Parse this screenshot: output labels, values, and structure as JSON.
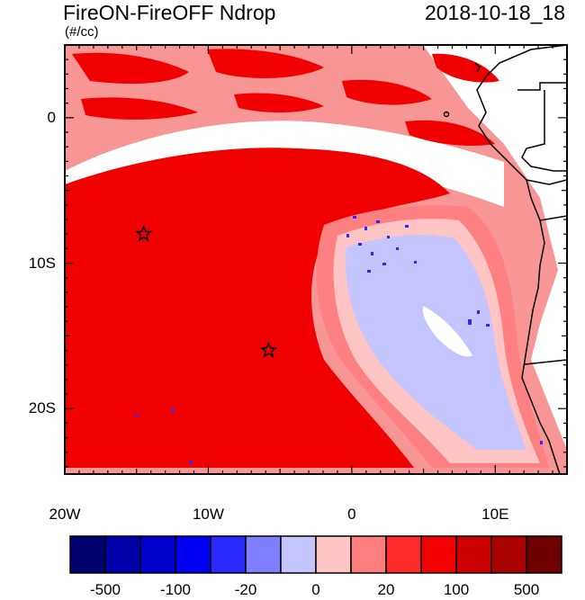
{
  "title_left": "FireON-FireOFF Ndrop",
  "title_right": "2018-10-18_18",
  "units": "(#/cc)",
  "map": {
    "lon_range": [
      -20,
      15
    ],
    "lat_range": [
      -24.5,
      5
    ],
    "x_ticks": [
      {
        "value": -20,
        "label": "20W"
      },
      {
        "value": -10,
        "label": "10W"
      },
      {
        "value": 0,
        "label": "0"
      },
      {
        "value": 10,
        "label": "10E"
      }
    ],
    "y_ticks": [
      {
        "value": 0,
        "label": "0"
      },
      {
        "value": -10,
        "label": "10S"
      },
      {
        "value": -20,
        "label": "20S"
      }
    ],
    "stars": [
      {
        "lon": -14.5,
        "lat": -8
      },
      {
        "lon": -5.8,
        "lat": -16
      }
    ]
  },
  "colorbar": {
    "colors": [
      "#00006e",
      "#0000aa",
      "#0000cc",
      "#0000f5",
      "#2a2aff",
      "#7e7eff",
      "#c4c4ff",
      "#ffc4c4",
      "#ff7e7e",
      "#ff2a2a",
      "#f50000",
      "#cc0000",
      "#aa0000",
      "#6e0000"
    ],
    "labels": [
      {
        "index": 1,
        "text": "-500"
      },
      {
        "index": 3,
        "text": "-100"
      },
      {
        "index": 5,
        "text": "-20"
      },
      {
        "index": 7,
        "text": "0"
      },
      {
        "index": 9,
        "text": "20"
      },
      {
        "index": 11,
        "text": "100"
      },
      {
        "index": 13,
        "text": "500"
      }
    ]
  }
}
